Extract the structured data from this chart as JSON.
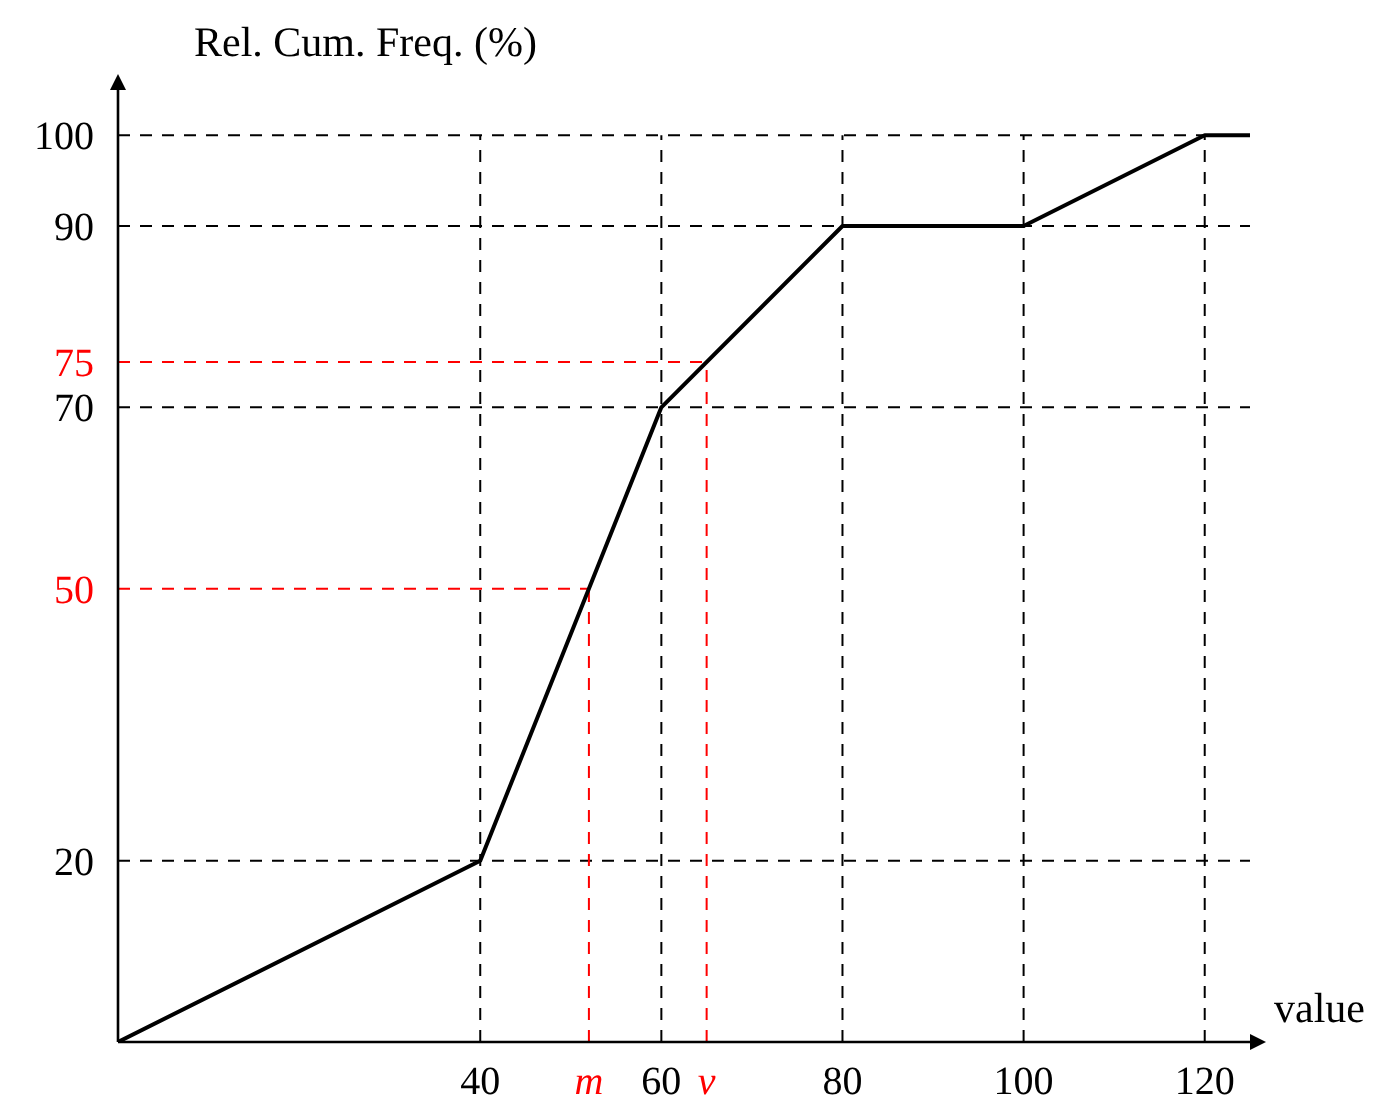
{
  "chart_data": {
    "type": "line",
    "xlabel": "value",
    "ylabel": "Rel. Cum. Freq. (%)",
    "x": [
      0,
      40,
      60,
      80,
      100,
      120,
      125
    ],
    "series": [
      {
        "color": "#000000",
        "values": [
          0,
          20,
          70,
          90,
          90,
          100,
          100
        ]
      }
    ],
    "xlim": [
      0,
      125
    ],
    "ylim": [
      0,
      105
    ],
    "xticks": [
      40,
      {
        "value": 52,
        "label": "m"
      },
      60,
      {
        "value": 65,
        "label": "v"
      },
      80,
      100,
      120
    ],
    "yticks": [
      20,
      50,
      70,
      75,
      90,
      100
    ],
    "grid": true,
    "line_style": "solid",
    "ref_lines": [
      {
        "axis": "x",
        "value": 52,
        "color": "#ff0000",
        "line_style": "dashed"
      },
      {
        "axis": "x",
        "value": 65,
        "color": "#ff0000",
        "line_style": "dashed"
      },
      {
        "axis": "y",
        "value": 50,
        "color": "#ff0000",
        "line_style": "dashed"
      },
      {
        "axis": "y",
        "value": 75,
        "color": "#ff0000",
        "line_style": "dashed"
      }
    ]
  }
}
